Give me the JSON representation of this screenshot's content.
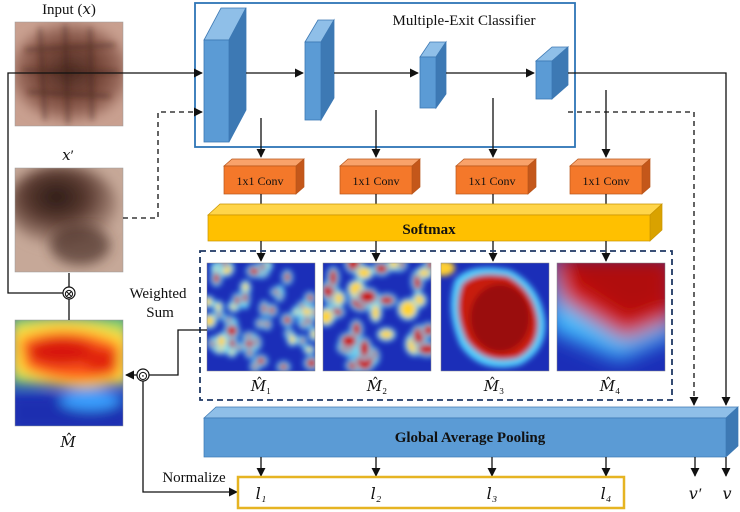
{
  "diagram": {
    "labels": {
      "input": "Input (𝑥)",
      "x_prime": "𝑥′",
      "m_hat": "𝑀̂",
      "classifier_title": "Multiple-Exit Classifier",
      "conv": "1x1 Conv",
      "softmax": "Softmax",
      "weighted": "Weighted",
      "sum": "Sum",
      "gap": "Global Average Pooling",
      "normalize": "Normalize",
      "v_prime": "𝑣′",
      "v": "𝑣",
      "times_symbol": "⊗",
      "dot_symbol": "⊙"
    },
    "maps": [
      {
        "label": "𝑀̂₁"
      },
      {
        "label": "𝑀̂₂"
      },
      {
        "label": "𝑀̂₃"
      },
      {
        "label": "𝑀̂₄"
      }
    ],
    "logits": [
      "𝑙₁",
      "𝑙₂",
      "𝑙₃",
      "𝑙₄"
    ],
    "colors": {
      "block_front": "#5b9bd5",
      "block_top": "#8fbfe8",
      "block_side": "#3d79b4",
      "frame": "#2e75b6",
      "conv": "#f4782a",
      "softmax": "#ffc000",
      "gap": "#5b9bd5",
      "logit_box": "#e6b422",
      "dashed_frame": "#1f3864"
    }
  }
}
